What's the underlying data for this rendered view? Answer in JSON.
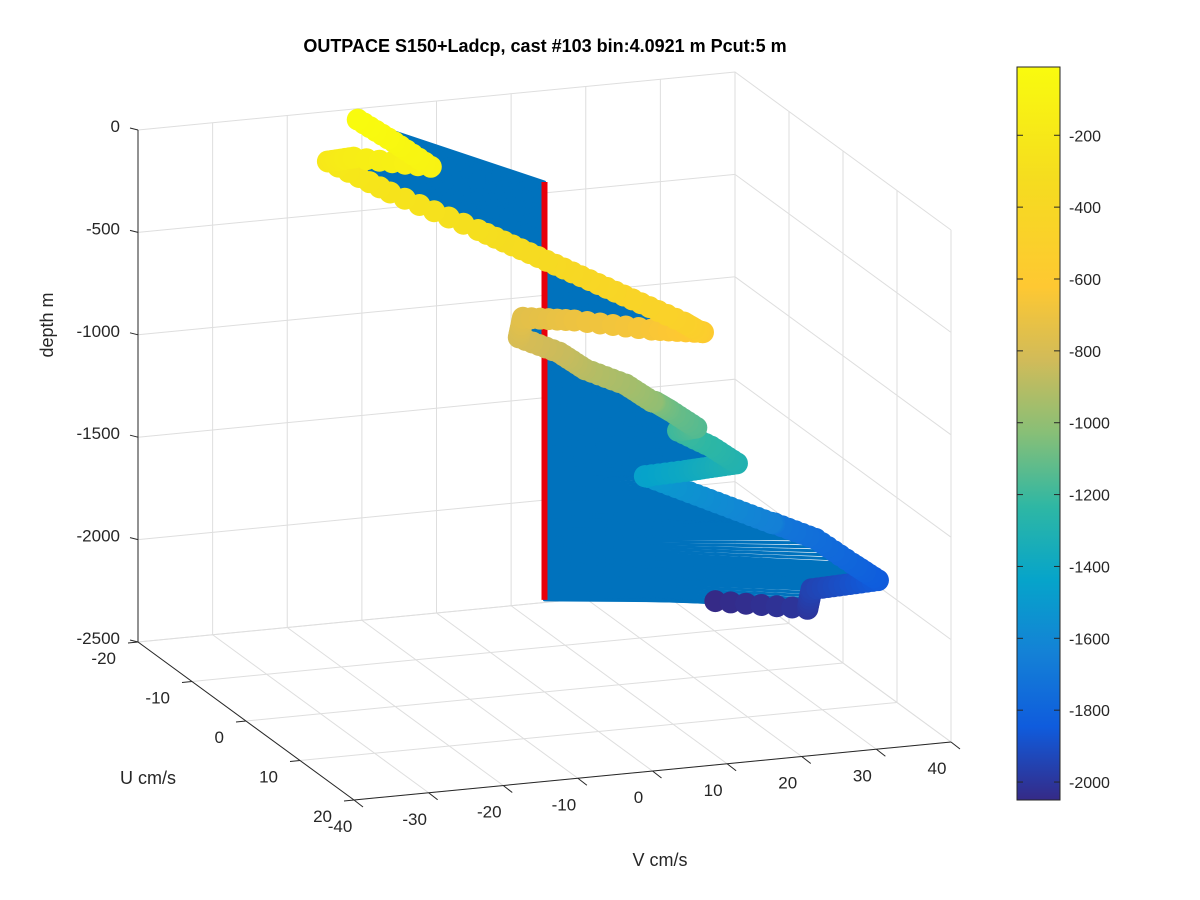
{
  "chart_data": {
    "type": "scatter",
    "title": "OUTPACE S150+Ladcp, cast #103 bin:4.0921 m  Pcut:5 m",
    "xlabel": "V cm/s",
    "ylabel": "U cm/s",
    "zlabel": "depth m",
    "xlim": [
      -40,
      40
    ],
    "ylim": [
      -20,
      20
    ],
    "zlim": [
      -2500,
      0
    ],
    "x_ticks": [
      "-40",
      "-30",
      "-20",
      "-10",
      "0",
      "10",
      "20",
      "30",
      "40"
    ],
    "y_ticks": [
      "-20",
      "-10",
      "0",
      "10",
      "20"
    ],
    "z_ticks": [
      "0",
      "-500",
      "-1000",
      "-1500",
      "-2000",
      "-2500"
    ],
    "grid": true,
    "colorbar": {
      "range": [
        -2050,
        -10
      ],
      "ticks": [
        "-200",
        "-400",
        "-600",
        "-800",
        "-1000",
        "-1200",
        "-1400",
        "-1600",
        "-1800",
        "-2000"
      ],
      "tick_values": [
        -200,
        -400,
        -600,
        -800,
        -1000,
        -1200,
        -1400,
        -1600,
        -1800,
        -2000
      ],
      "colormap": "parula"
    },
    "profile_line_color": "#e8000b",
    "vector_color": "#0072bd",
    "profile": {
      "depth": [
        -10,
        -50,
        -100,
        -150,
        -200,
        -250,
        -300,
        -350,
        -400,
        -450,
        -500,
        -550,
        -600,
        -650,
        -700,
        -750,
        -800,
        -850,
        -900,
        -950,
        -1000,
        -1050,
        -1100,
        -1150,
        -1200,
        -1250,
        -1300,
        -1350,
        -1400,
        -1450,
        -1500,
        -1550,
        -1600,
        -1650,
        -1700,
        -1750,
        -1800,
        -1850,
        -1900,
        -1950,
        -2000,
        -2050
      ],
      "v": [
        -12,
        -10,
        -8,
        -14,
        -16,
        -12,
        -6,
        -2,
        2,
        6,
        10,
        12,
        14,
        10,
        4,
        0,
        -2,
        2,
        4,
        8,
        10,
        12,
        14,
        16,
        15,
        18,
        20,
        18,
        16,
        12,
        14,
        18,
        22,
        26,
        28,
        32,
        34,
        36,
        33,
        30,
        28,
        20
      ],
      "u": [
        -18,
        -14,
        -10,
        -16,
        -18,
        -12,
        -4,
        0,
        4,
        8,
        12,
        12,
        10,
        6,
        0,
        -4,
        -2,
        0,
        2,
        4,
        6,
        4,
        4,
        6,
        4,
        6,
        8,
        6,
        4,
        2,
        0,
        2,
        4,
        6,
        4,
        6,
        10,
        12,
        10,
        8,
        10,
        4
      ]
    }
  }
}
